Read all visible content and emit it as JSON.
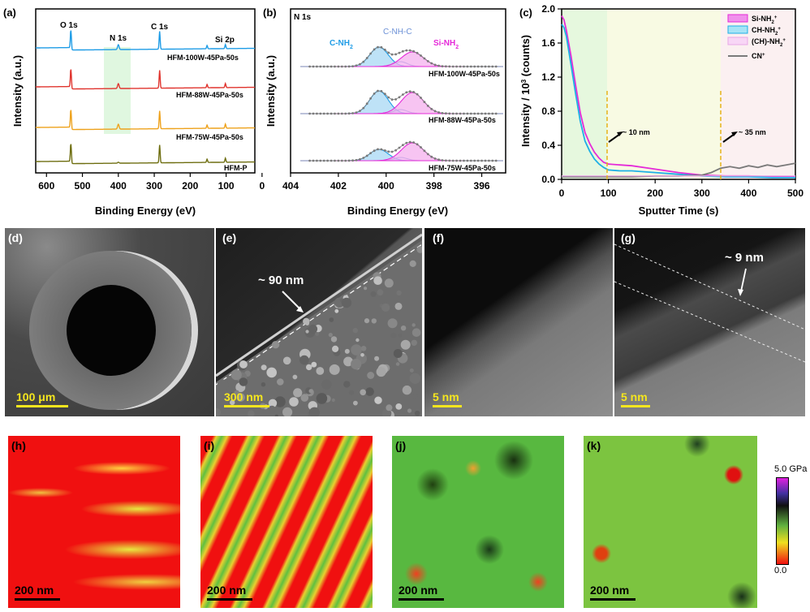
{
  "panel_letters": {
    "a": "(a)",
    "b": "(b)",
    "c": "(c)",
    "d": "(d)",
    "e": "(e)",
    "f": "(f)",
    "g": "(g)",
    "h": "(h)",
    "i": "(i)",
    "j": "(j)",
    "k": "(k)"
  },
  "chart_data": [
    {
      "type": "line",
      "panel": "a",
      "xlabel": "Binding Energy (eV)",
      "ylabel": "Intensity (a.u.)",
      "xlim": [
        630,
        20
      ],
      "x_ticks": [
        "600",
        "500",
        "400",
        "300",
        "200",
        "100",
        "0"
      ],
      "peak_labels": [
        "O 1s",
        "N 1s",
        "C 1s",
        "Si 2p"
      ],
      "series": [
        {
          "name": "HFM-100W-45Pa-50s",
          "color": "#1e9ce6",
          "offset": 3
        },
        {
          "name": "HFM-88W-45Pa-50s",
          "color": "#e0342e",
          "offset": 2
        },
        {
          "name": "HFM-75W-45Pa-50s",
          "color": "#eea21c",
          "offset": 1
        },
        {
          "name": "HFM-P",
          "color": "#6e6e10",
          "offset": 0
        }
      ],
      "highlight_range": [
        435,
        362
      ]
    },
    {
      "type": "line",
      "panel": "b",
      "title": "N 1s",
      "xlabel": "Binding Energy (eV)",
      "ylabel": "Intensity (a.u.)",
      "xlim": [
        404,
        395
      ],
      "x_ticks": [
        "404",
        "402",
        "400",
        "398",
        "396"
      ],
      "component_labels": [
        "C-NH",
        "C-NH-C",
        "Si-NH"
      ],
      "component_colors": [
        "#1e9ce6",
        "#6a8fd6",
        "#e52ad8"
      ],
      "series": [
        {
          "name": "HFM-100W-45Pa-50s"
        },
        {
          "name": "HFM-88W-45Pa-50s"
        },
        {
          "name": "HFM-75W-45Pa-50s"
        }
      ]
    },
    {
      "type": "line",
      "panel": "c",
      "xlabel": "Sputter Time (s)",
      "ylabel_main": "Intensity / 10",
      "ylabel_exp": "3",
      "ylabel_tail": " (counts)",
      "xlim": [
        0,
        500
      ],
      "ylim": [
        0,
        2.0
      ],
      "x_ticks": [
        "0",
        "100",
        "200",
        "300",
        "400",
        "500"
      ],
      "y_ticks": [
        "0.0",
        "0.4",
        "0.8",
        "1.2",
        "1.6",
        "2.0"
      ],
      "legend": [
        "Si-NH",
        "CH-NH",
        "(CH)-NH",
        "CN"
      ],
      "legend_colors": [
        "#e52ad8",
        "#1eb0e6",
        "#f0b8f0",
        "#7a7a7a"
      ],
      "annotations": [
        "~ 10 nm",
        "~ 35 nm"
      ],
      "markers_x": [
        97,
        340
      ],
      "series": [
        {
          "name": "Si-NH",
          "color": "#e52ad8",
          "x": [
            0,
            5,
            10,
            20,
            30,
            40,
            50,
            60,
            70,
            80,
            90,
            100,
            125,
            150,
            200,
            250,
            300,
            350,
            400,
            450,
            500
          ],
          "y": [
            1.92,
            1.87,
            1.75,
            1.45,
            1.1,
            0.78,
            0.55,
            0.42,
            0.32,
            0.25,
            0.2,
            0.18,
            0.17,
            0.16,
            0.12,
            0.08,
            0.05,
            0.04,
            0.04,
            0.03,
            0.03
          ]
        },
        {
          "name": "CH-NH",
          "color": "#1eb0e6",
          "x": [
            0,
            5,
            10,
            20,
            30,
            40,
            50,
            60,
            70,
            80,
            90,
            100,
            125,
            150,
            200,
            250,
            300,
            350,
            400,
            450,
            500
          ],
          "y": [
            1.82,
            1.78,
            1.68,
            1.35,
            1.0,
            0.68,
            0.45,
            0.33,
            0.24,
            0.18,
            0.14,
            0.11,
            0.1,
            0.1,
            0.08,
            0.06,
            0.04,
            0.03,
            0.03,
            0.02,
            0.02
          ]
        },
        {
          "name": "CN",
          "color": "#7a7a7a",
          "x": [
            0,
            50,
            100,
            150,
            200,
            250,
            300,
            320,
            340,
            360,
            380,
            400,
            420,
            440,
            460,
            480,
            500
          ],
          "y": [
            0.03,
            0.03,
            0.03,
            0.03,
            0.04,
            0.04,
            0.05,
            0.08,
            0.13,
            0.15,
            0.13,
            0.16,
            0.14,
            0.17,
            0.15,
            0.17,
            0.19
          ]
        }
      ]
    }
  ],
  "sem_labels": {
    "e_thickness": "~ 90 nm",
    "g_thickness": "~ 9 nm",
    "d_scale": "100 μm",
    "e_scale": "300 nm",
    "f_scale": "5 nm",
    "g_scale": "5 nm"
  },
  "map_labels": {
    "h_scale": "200 nm",
    "i_scale": "200 nm",
    "j_scale": "200 nm",
    "k_scale": "200 nm"
  },
  "colorbar": {
    "max": "5.0 GPa",
    "min": "0.0"
  }
}
